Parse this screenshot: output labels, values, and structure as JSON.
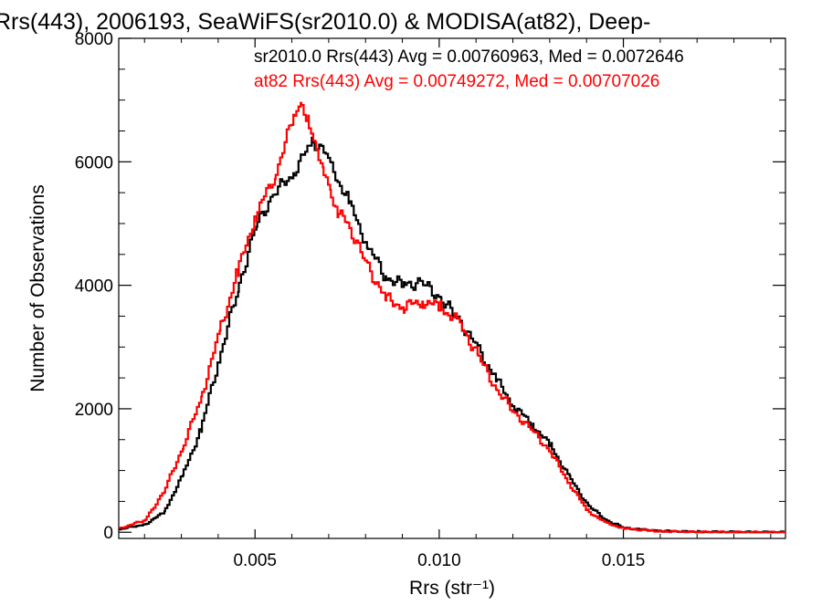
{
  "chart_data": {
    "type": "line",
    "title": "Rrs(443), 2006193, SeaWiFS(sr2010.0) & MODISA(at82), Deep-",
    "xlabel": "Rrs (str⁻¹)",
    "ylabel": "Number of Observations",
    "xlim": [
      0.0013,
      0.0194
    ],
    "ylim": [
      -100,
      8000
    ],
    "x_ticks": [
      0.005,
      0.01,
      0.015
    ],
    "x_tick_labels": [
      "0.005",
      "0.010",
      "0.015"
    ],
    "y_ticks": [
      0,
      2000,
      4000,
      6000,
      8000
    ],
    "y_tick_labels": [
      "0",
      "2000",
      "4000",
      "6000",
      "8000"
    ],
    "grid": false,
    "legend_position": "top-right",
    "series": [
      {
        "name": "sr2010.0 Rrs(443)",
        "annotation": "sr2010.0 Rrs(443) Avg = 0.00760963, Med = 0.0072646",
        "color": "#000000",
        "points": [
          [
            0.0013,
            50
          ],
          [
            0.002,
            130
          ],
          [
            0.0025,
            320
          ],
          [
            0.003,
            900
          ],
          [
            0.0035,
            1650
          ],
          [
            0.004,
            2800
          ],
          [
            0.0045,
            3900
          ],
          [
            0.005,
            4950
          ],
          [
            0.0055,
            5500
          ],
          [
            0.006,
            5800
          ],
          [
            0.0063,
            6100
          ],
          [
            0.0065,
            6300
          ],
          [
            0.0068,
            6250
          ],
          [
            0.007,
            5950
          ],
          [
            0.0075,
            5400
          ],
          [
            0.0078,
            4950
          ],
          [
            0.008,
            4700
          ],
          [
            0.0085,
            4150
          ],
          [
            0.009,
            4000
          ],
          [
            0.0095,
            4050
          ],
          [
            0.01,
            3800
          ],
          [
            0.0105,
            3450
          ],
          [
            0.011,
            3000
          ],
          [
            0.0115,
            2500
          ],
          [
            0.012,
            2050
          ],
          [
            0.0125,
            1750
          ],
          [
            0.013,
            1400
          ],
          [
            0.0135,
            900
          ],
          [
            0.014,
            450
          ],
          [
            0.0145,
            200
          ],
          [
            0.015,
            70
          ],
          [
            0.016,
            20
          ],
          [
            0.017,
            8
          ],
          [
            0.0194,
            0
          ]
        ]
      },
      {
        "name": "at82 Rrs(443)",
        "annotation": "at82 Rrs(443) Avg = 0.00749272, Med = 0.00707026",
        "color": "#ff0000",
        "points": [
          [
            0.0013,
            60
          ],
          [
            0.002,
            200
          ],
          [
            0.0025,
            650
          ],
          [
            0.003,
            1350
          ],
          [
            0.0035,
            2150
          ],
          [
            0.004,
            3200
          ],
          [
            0.0045,
            4200
          ],
          [
            0.005,
            5150
          ],
          [
            0.0055,
            5750
          ],
          [
            0.0058,
            6300
          ],
          [
            0.006,
            6700
          ],
          [
            0.0062,
            6900
          ],
          [
            0.0064,
            6750
          ],
          [
            0.0066,
            6300
          ],
          [
            0.0068,
            6000
          ],
          [
            0.007,
            5550
          ],
          [
            0.0072,
            5200
          ],
          [
            0.0075,
            5000
          ],
          [
            0.0078,
            4600
          ],
          [
            0.008,
            4350
          ],
          [
            0.0085,
            3800
          ],
          [
            0.009,
            3650
          ],
          [
            0.0095,
            3750
          ],
          [
            0.01,
            3650
          ],
          [
            0.0105,
            3400
          ],
          [
            0.011,
            2900
          ],
          [
            0.0115,
            2350
          ],
          [
            0.012,
            1950
          ],
          [
            0.0125,
            1650
          ],
          [
            0.013,
            1300
          ],
          [
            0.0135,
            800
          ],
          [
            0.014,
            350
          ],
          [
            0.0145,
            150
          ],
          [
            0.015,
            60
          ],
          [
            0.016,
            15
          ],
          [
            0.017,
            5
          ],
          [
            0.0194,
            0
          ]
        ]
      }
    ]
  }
}
